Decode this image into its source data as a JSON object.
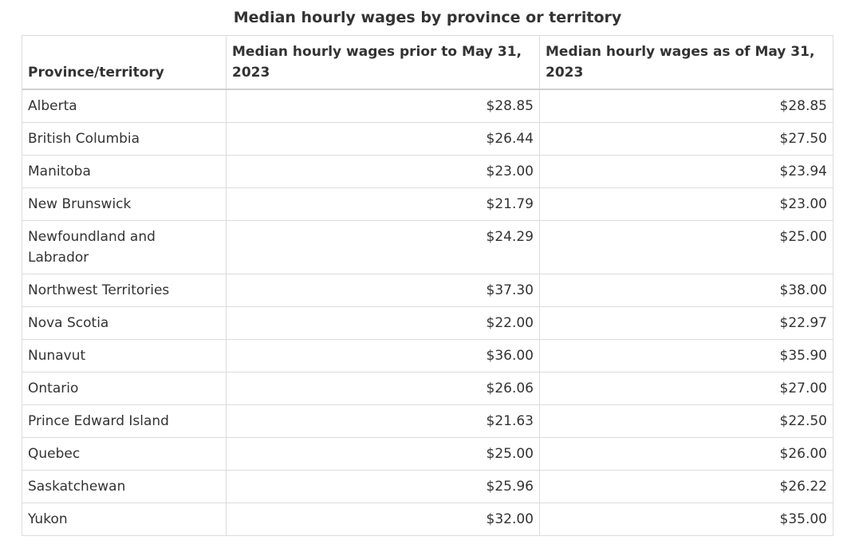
{
  "caption": "Median hourly wages by province or territory",
  "table": {
    "headers": [
      "Province/territory",
      "Median hourly wages prior to May 31, 2023",
      "Median hourly wages as of May 31, 2023"
    ],
    "rows": [
      {
        "region": "Alberta",
        "prior": "$28.85",
        "current": "$28.85"
      },
      {
        "region": "British Columbia",
        "prior": "$26.44",
        "current": "$27.50"
      },
      {
        "region": "Manitoba",
        "prior": "$23.00",
        "current": "$23.94"
      },
      {
        "region": "New Brunswick",
        "prior": "$21.79",
        "current": "$23.00"
      },
      {
        "region": "Newfoundland and Labrador",
        "prior": "$24.29",
        "current": "$25.00"
      },
      {
        "region": "Northwest Territories",
        "prior": "$37.30",
        "current": "$38.00"
      },
      {
        "region": "Nova Scotia",
        "prior": "$22.00",
        "current": "$22.97"
      },
      {
        "region": "Nunavut",
        "prior": "$36.00",
        "current": "$35.90"
      },
      {
        "region": "Ontario",
        "prior": "$26.06",
        "current": "$27.00"
      },
      {
        "region": "Prince Edward Island",
        "prior": "$21.63",
        "current": "$22.50"
      },
      {
        "region": "Quebec",
        "prior": "$25.00",
        "current": "$26.00"
      },
      {
        "region": "Saskatchewan",
        "prior": "$25.96",
        "current": "$26.22"
      },
      {
        "region": "Yukon",
        "prior": "$32.00",
        "current": "$35.00"
      }
    ]
  }
}
